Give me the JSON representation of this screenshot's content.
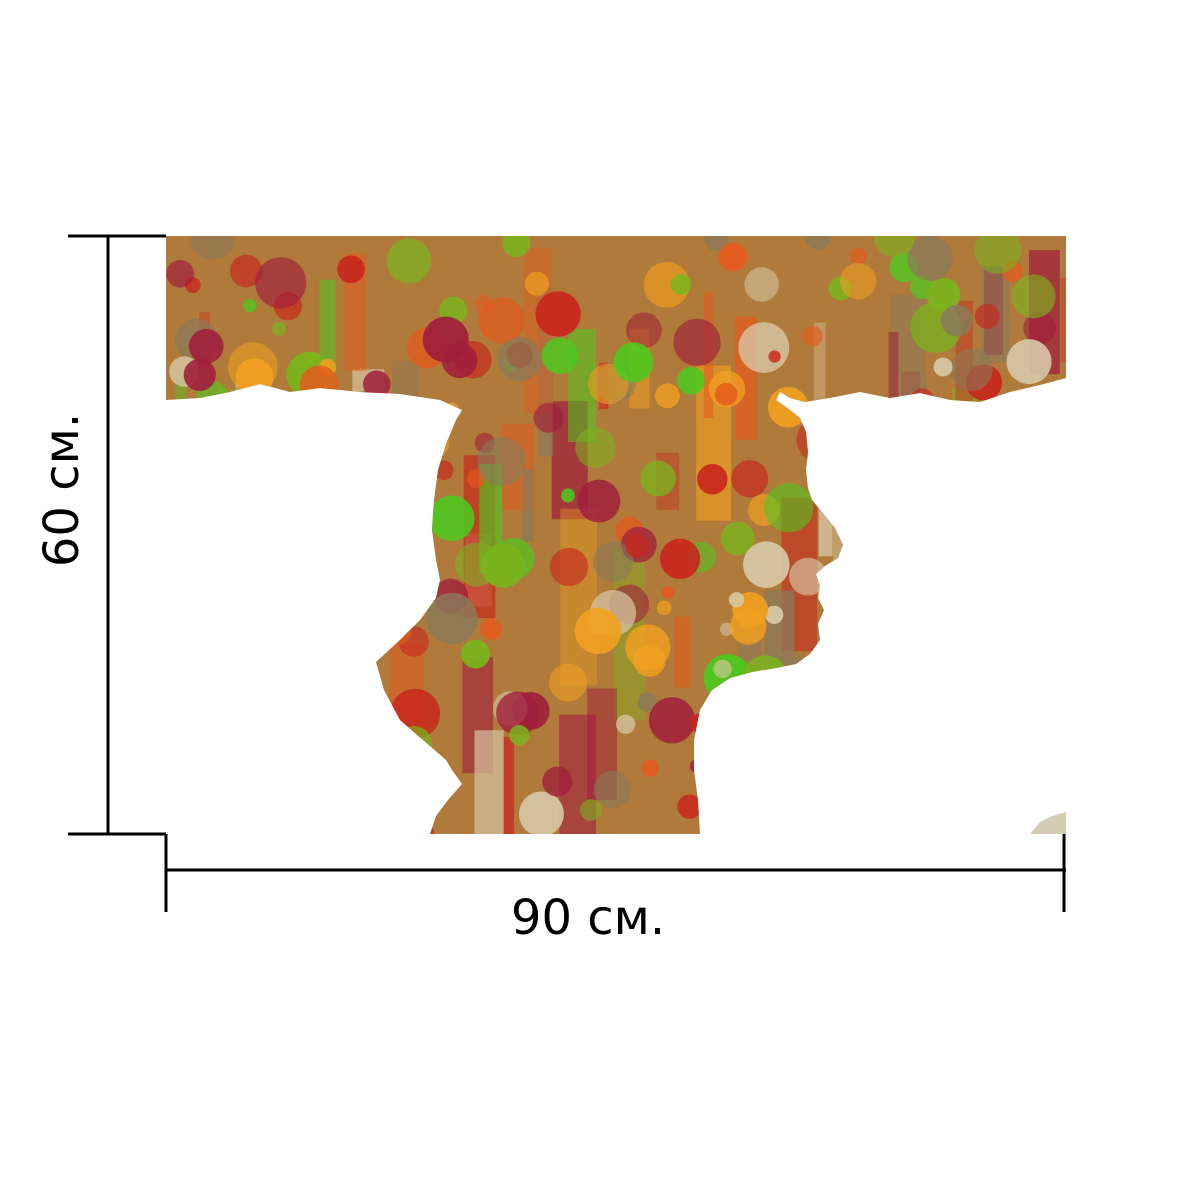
{
  "dimensions": {
    "width_label": "90 см.",
    "height_label": "60 см."
  },
  "artwork": {
    "subject": "abstract-profile-silhouette",
    "palette": [
      "#c8261c",
      "#e65a1e",
      "#f0a020",
      "#7ab41e",
      "#4ec81e",
      "#a01e3c",
      "#8a7a5a",
      "#d8c8a8"
    ]
  },
  "colors": {
    "dimension_line": "#000000",
    "background": "#ffffff"
  }
}
